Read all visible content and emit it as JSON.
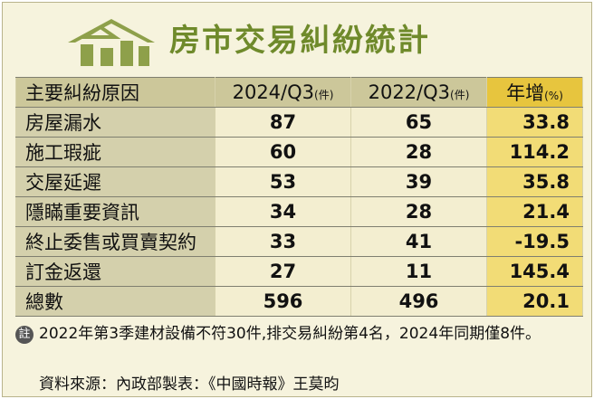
{
  "title": "房市交易糾紛統計",
  "chart_data": {
    "type": "table",
    "headers": {
      "cause": "主要糾紛原因",
      "q3_2024": "2024/Q3",
      "q3_2024_unit": "(件)",
      "q3_2022": "2022/Q3",
      "q3_2022_unit": "(件)",
      "growth": "年增",
      "growth_unit": "(%)"
    },
    "rows": [
      {
        "cause": "房屋漏水",
        "q3_2024": "87",
        "q3_2022": "65",
        "growth": "33.8"
      },
      {
        "cause": "施工瑕疵",
        "q3_2024": "60",
        "q3_2022": "28",
        "growth": "114.2"
      },
      {
        "cause": "交屋延遲",
        "q3_2024": "53",
        "q3_2022": "39",
        "growth": "35.8"
      },
      {
        "cause": "隱瞞重要資訊",
        "q3_2024": "34",
        "q3_2022": "28",
        "growth": "21.4"
      },
      {
        "cause": "終止委售或買賣契約",
        "q3_2024": "33",
        "q3_2022": "41",
        "growth": "-19.5"
      },
      {
        "cause": "訂金返還",
        "q3_2024": "27",
        "q3_2022": "11",
        "growth": "145.4"
      },
      {
        "cause": "總數",
        "q3_2024": "596",
        "q3_2022": "496",
        "growth": "20.1"
      }
    ]
  },
  "note": {
    "badge": "註",
    "text": "2022年第3季建材設備不符30件,排交易糾紛第4名，2024年同期僅8件。"
  },
  "source": "資料來源：內政部製表：《中國時報》王莫昀",
  "colors": {
    "title": "#6f8a2b",
    "header": "#ccc79a",
    "growth_header": "#e7c53e",
    "growth_cell": "#f2dc76",
    "cause_cell": "#d4d0ac",
    "value_cell": "#f3eed0",
    "background": "#f6f3dd"
  },
  "icon": "house-logo-icon"
}
